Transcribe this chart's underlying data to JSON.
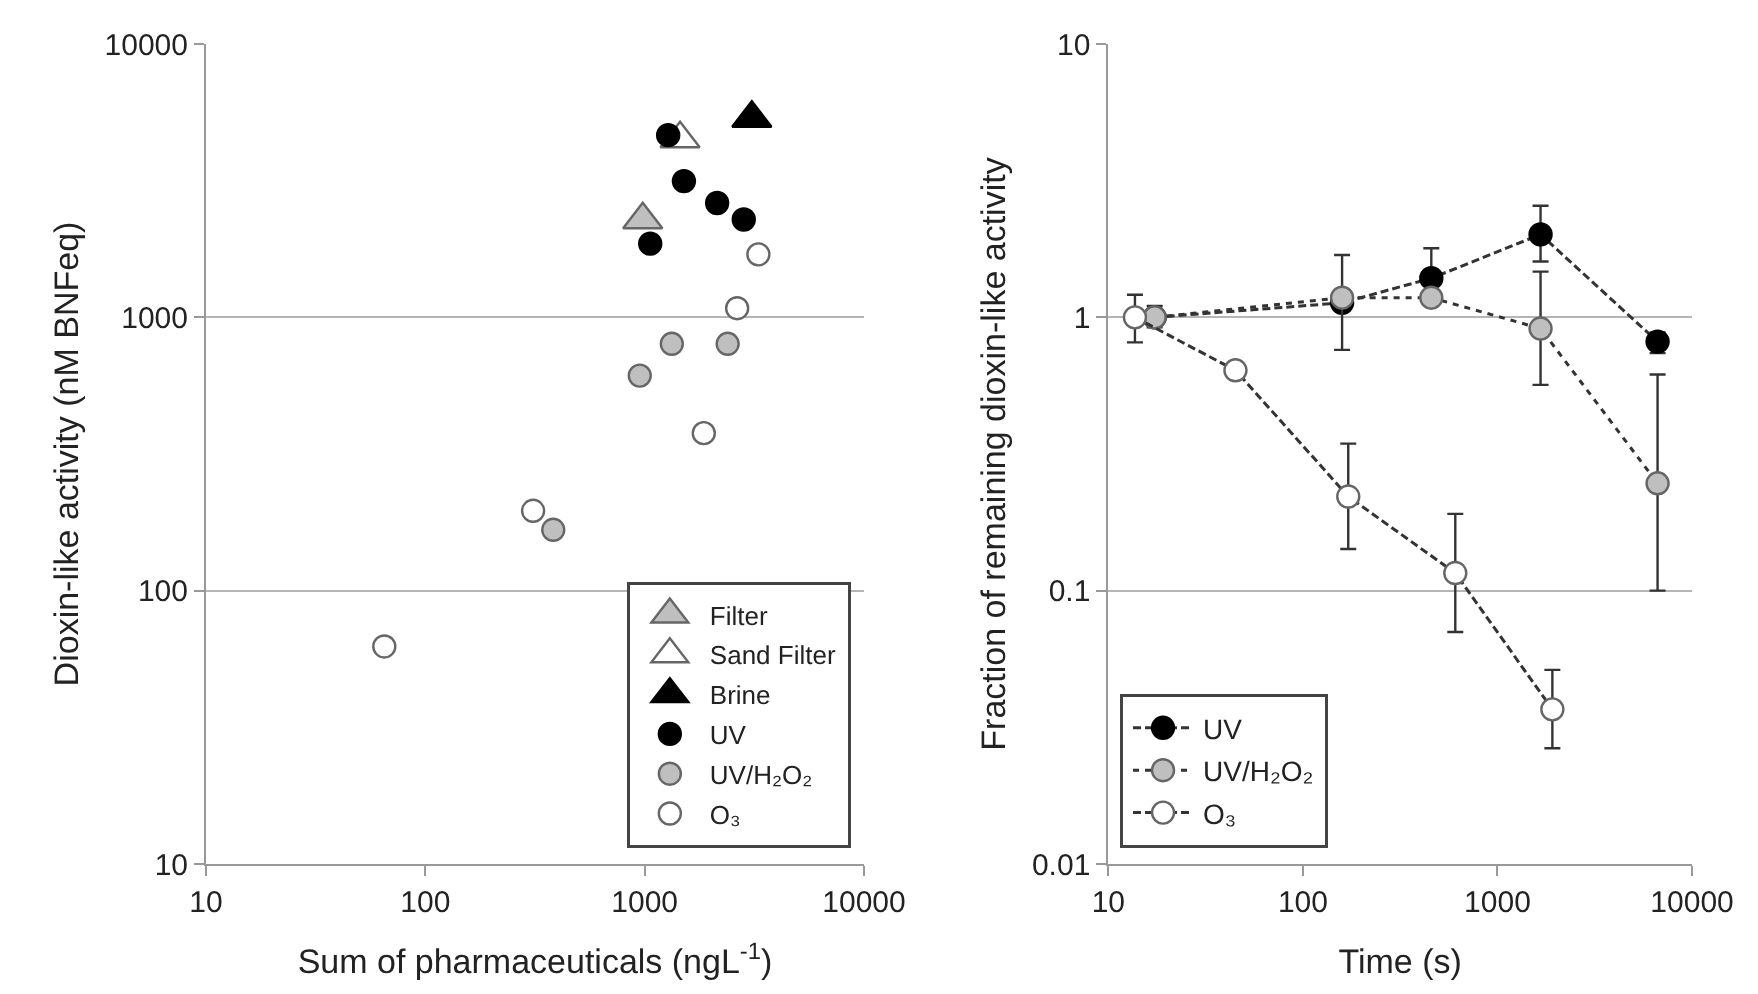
{
  "chart_data": [
    {
      "type": "scatter",
      "xlabel": "Sum of pharmaceuticals (ngL$^{-1}$)",
      "ylabel": "Dioxin-like activity (nM BNFeq)",
      "log": "xy",
      "xlim": [
        10,
        10000
      ],
      "ylim": [
        10,
        10000
      ],
      "xticks": [
        10,
        100,
        1000,
        10000
      ],
      "yticks": [
        10,
        100,
        1000,
        10000
      ],
      "grid": "y",
      "legend": "bottom right",
      "series": [
        {
          "name": "Filter",
          "color": "#bfbfbf",
          "marker": "triangle",
          "x": [
            980
          ],
          "values": [
            2275
          ]
        },
        {
          "name": "Sand Filter",
          "color": "#ffffff",
          "marker": "triangle",
          "x": [
            1450
          ],
          "values": [
            4500
          ]
        },
        {
          "name": "Brine",
          "color": "#000000",
          "marker": "triangle",
          "x": [
            3080
          ],
          "values": [
            5350
          ]
        },
        {
          "name": "UV",
          "color": "#000000",
          "marker": "circle",
          "x": [
            1280,
            1510,
            2140,
            2830,
            1060
          ],
          "values": [
            4640,
            3150,
            2620,
            2280,
            1860
          ]
        },
        {
          "name": "UV/H₂O₂",
          "color": "#bfbfbf",
          "marker": "circle",
          "x": [
            1330,
            2390,
            950,
            383
          ],
          "values": [
            800,
            800,
            612,
            167
          ]
        },
        {
          "name": "O₃",
          "color": "#ffffff",
          "marker": "circle",
          "x": [
            3300,
            2640,
            1860,
            310,
            65
          ],
          "values": [
            1700,
            1080,
            377,
            196,
            62.5
          ]
        }
      ]
    },
    {
      "type": "line",
      "xlabel": "Time (s)",
      "ylabel": "Fraction of remaining dioxin-like activity",
      "log": "xy",
      "xlim": [
        10,
        10000
      ],
      "ylim": [
        0.01,
        10
      ],
      "xticks": [
        10,
        100,
        1000,
        10000
      ],
      "yticks": [
        0.01,
        0.1,
        1,
        10
      ],
      "grid": "y",
      "legend": "bottom left",
      "marker": "circle",
      "series": [
        {
          "name": "UV",
          "color": "#000000",
          "line_style": "dashed",
          "x": [
            17.3,
            159,
            457,
            1665,
            6650
          ],
          "values": [
            1,
            1.13,
            1.39,
            2.01,
            0.815
          ],
          "errors": [
            null,
            null,
            [
              1.15,
              1.79
            ],
            [
              1.6,
              2.56
            ],
            [
              0.74,
              0.88
            ]
          ]
        },
        {
          "name": "UV/H₂O₂",
          "color": "#bfbfbf",
          "line_style": "dotted",
          "x": [
            17.3,
            159,
            457,
            1665,
            6650
          ],
          "values": [
            1,
            1.18,
            1.18,
            0.91,
            0.247
          ],
          "errors": [
            [
              0.92,
              1.1
            ],
            [
              0.76,
              1.69
            ],
            null,
            [
              0.566,
              1.47
            ],
            [
              0.1,
              0.618
            ]
          ]
        },
        {
          "name": "O₃",
          "color": "#ffffff",
          "line_style": "dashed",
          "x": [
            13.7,
            45,
            171,
            607,
            1915
          ],
          "values": [
            1,
            0.64,
            0.221,
            0.116,
            0.0368
          ],
          "errors": [
            [
              0.81,
              1.21
            ],
            null,
            [
              0.142,
              0.345
            ],
            [
              0.0706,
              0.191
            ],
            [
              0.0265,
              0.0513
            ]
          ]
        }
      ]
    }
  ]
}
